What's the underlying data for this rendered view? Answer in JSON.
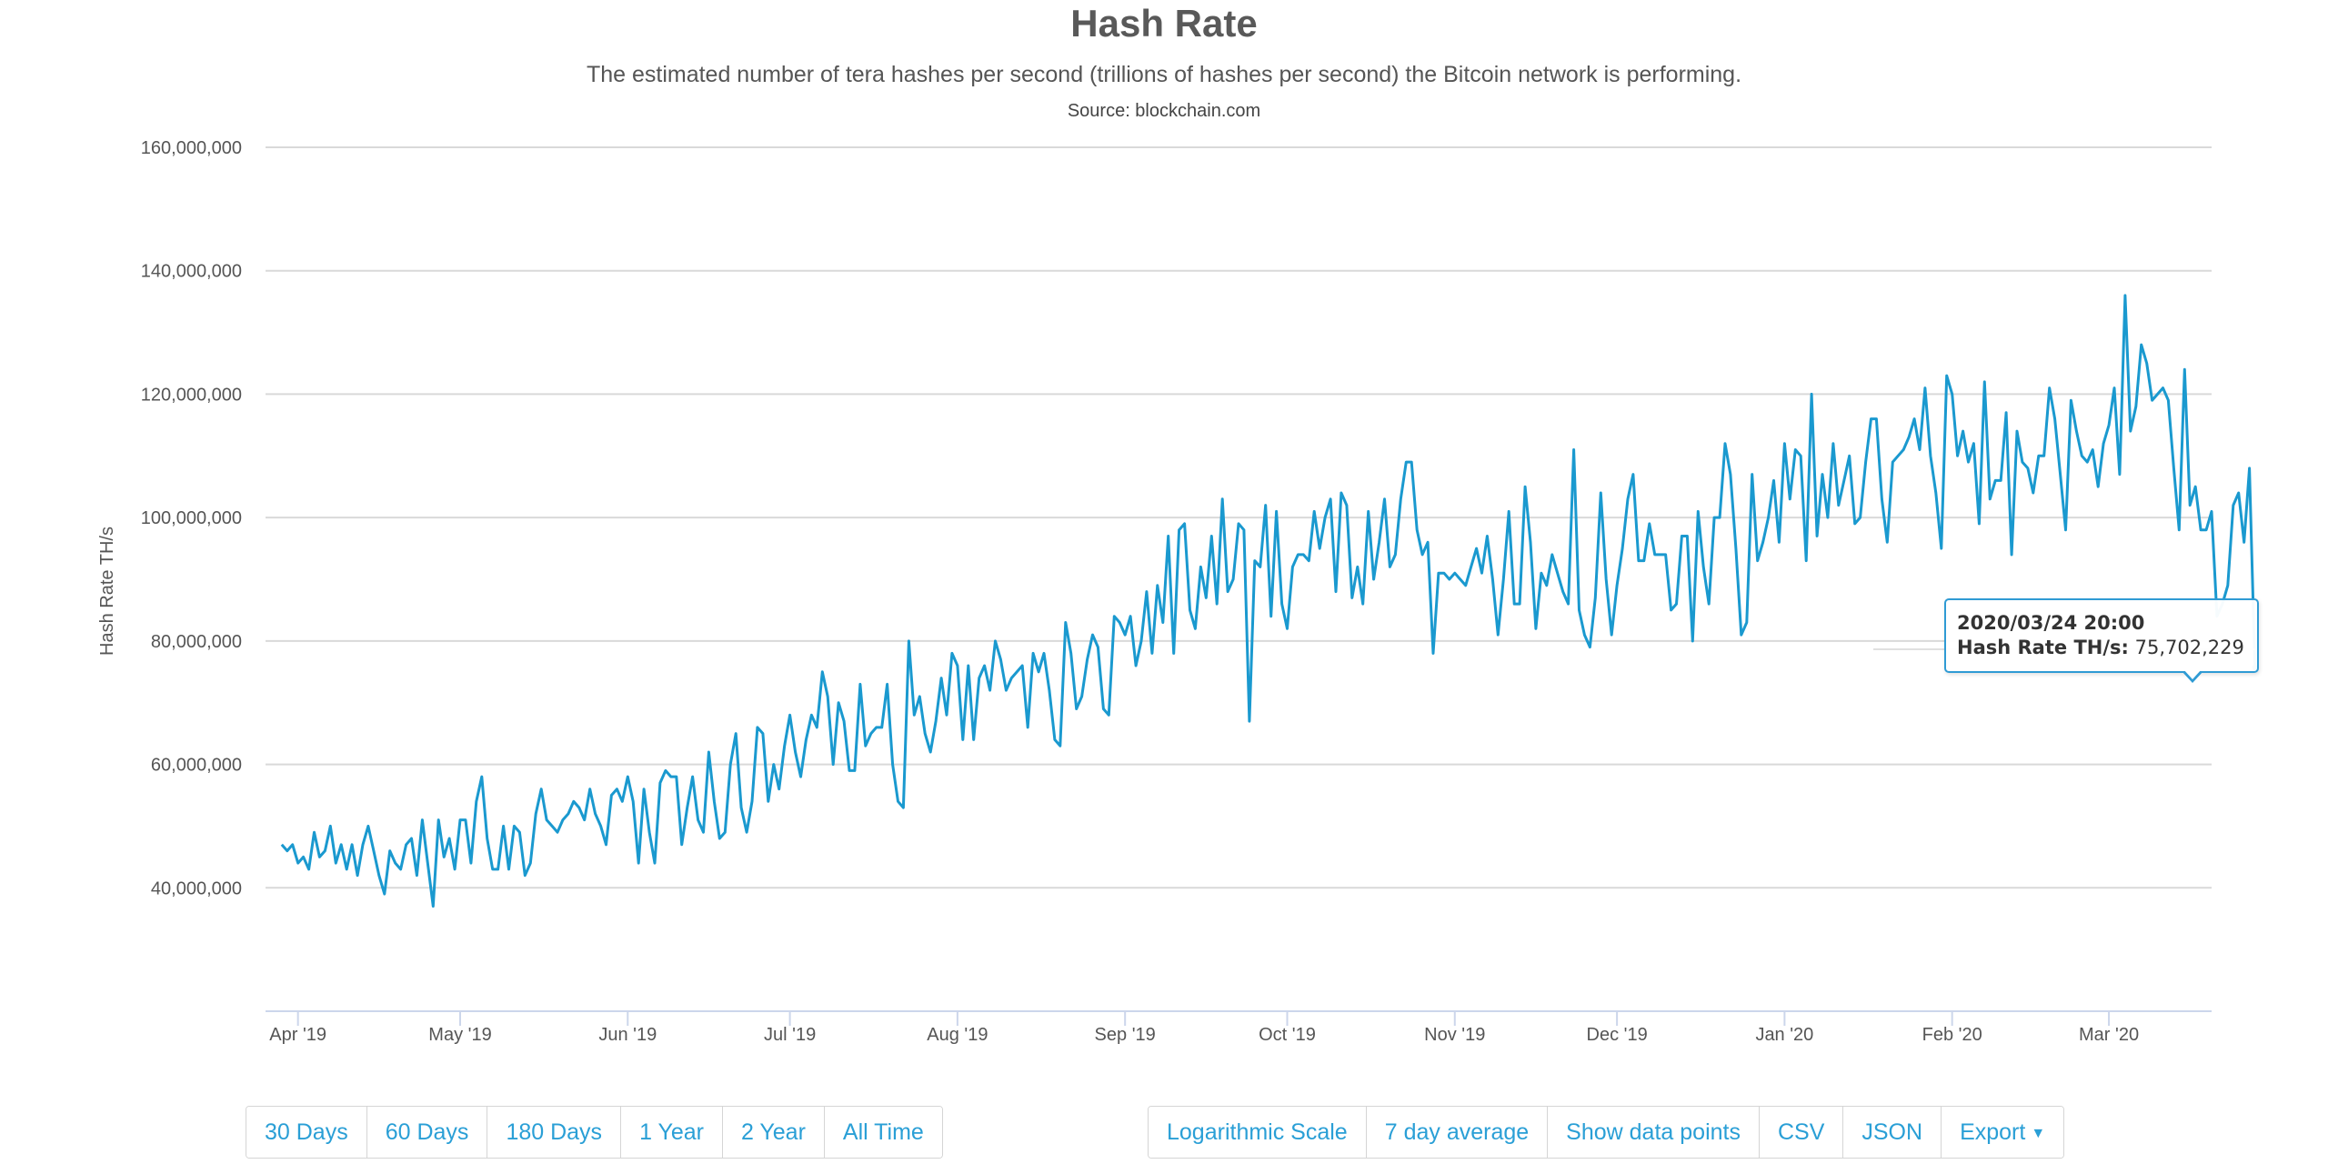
{
  "chart_data": {
    "type": "line",
    "title": "Hash Rate",
    "subtitle": "The estimated number of tera hashes per second (trillions of hashes per second) the Bitcoin network is performing.",
    "source": "Source: blockchain.com",
    "ylabel": "Hash Rate TH/s",
    "xlabel": "",
    "ylim": [
      20000000,
      160000000
    ],
    "y_ticks": [
      {
        "value": 40000000,
        "label": "40,000,000"
      },
      {
        "value": 60000000,
        "label": "60,000,000"
      },
      {
        "value": 80000000,
        "label": "80,000,000"
      },
      {
        "value": 100000000,
        "label": "100,000,000"
      },
      {
        "value": 120000000,
        "label": "120,000,000"
      },
      {
        "value": 140000000,
        "label": "140,000,000"
      },
      {
        "value": 160000000,
        "label": "160,000,000"
      }
    ],
    "x_range_days": [
      0,
      360
    ],
    "x_ticks": [
      {
        "day": 6,
        "label": "Apr '19"
      },
      {
        "day": 36,
        "label": "May '19"
      },
      {
        "day": 67,
        "label": "Jun '19"
      },
      {
        "day": 97,
        "label": "Jul '19"
      },
      {
        "day": 128,
        "label": "Aug '19"
      },
      {
        "day": 159,
        "label": "Sep '19"
      },
      {
        "day": 189,
        "label": "Oct '19"
      },
      {
        "day": 220,
        "label": "Nov '19"
      },
      {
        "day": 250,
        "label": "Dec '19"
      },
      {
        "day": 281,
        "label": "Jan '20"
      },
      {
        "day": 312,
        "label": "Feb '20"
      },
      {
        "day": 341,
        "label": "Mar '20"
      }
    ],
    "series": [
      {
        "name": "Hash Rate TH/s",
        "color": "#1a99cf",
        "x_start_day": 3,
        "x_step_days": 1,
        "values": [
          47000000,
          46000000,
          47000000,
          44000000,
          45000000,
          43000000,
          49000000,
          45000000,
          46000000,
          50000000,
          44000000,
          47000000,
          43000000,
          47000000,
          42000000,
          47000000,
          50000000,
          46000000,
          42000000,
          39000000,
          46000000,
          44000000,
          43000000,
          47000000,
          48000000,
          42000000,
          51000000,
          44000000,
          37000000,
          51000000,
          45000000,
          48000000,
          43000000,
          51000000,
          51000000,
          44000000,
          54000000,
          58000000,
          48000000,
          43000000,
          43000000,
          50000000,
          43000000,
          50000000,
          49000000,
          42000000,
          44000000,
          52000000,
          56000000,
          51000000,
          50000000,
          49000000,
          51000000,
          52000000,
          54000000,
          53000000,
          51000000,
          56000000,
          52000000,
          50000000,
          47000000,
          55000000,
          56000000,
          54000000,
          58000000,
          54000000,
          44000000,
          56000000,
          49000000,
          44000000,
          57000000,
          59000000,
          58000000,
          58000000,
          47000000,
          53000000,
          58000000,
          51000000,
          49000000,
          62000000,
          54000000,
          48000000,
          49000000,
          60000000,
          65000000,
          53000000,
          49000000,
          54000000,
          66000000,
          65000000,
          54000000,
          60000000,
          56000000,
          63000000,
          68000000,
          62000000,
          58000000,
          64000000,
          68000000,
          66000000,
          75000000,
          71000000,
          60000000,
          70000000,
          67000000,
          59000000,
          59000000,
          73000000,
          63000000,
          65000000,
          66000000,
          66000000,
          73000000,
          60000000,
          54000000,
          53000000,
          80000000,
          68000000,
          71000000,
          65000000,
          62000000,
          67000000,
          74000000,
          68000000,
          78000000,
          76000000,
          64000000,
          76000000,
          64000000,
          74000000,
          76000000,
          72000000,
          80000000,
          77000000,
          72000000,
          74000000,
          75000000,
          76000000,
          66000000,
          78000000,
          75000000,
          78000000,
          72000000,
          64000000,
          63000000,
          83000000,
          78000000,
          69000000,
          71000000,
          77000000,
          81000000,
          79000000,
          69000000,
          68000000,
          84000000,
          83000000,
          81000000,
          84000000,
          76000000,
          80000000,
          88000000,
          78000000,
          89000000,
          83000000,
          97000000,
          78000000,
          98000000,
          99000000,
          85000000,
          82000000,
          92000000,
          87000000,
          97000000,
          86000000,
          103000000,
          88000000,
          90000000,
          99000000,
          98000000,
          67000000,
          93000000,
          92000000,
          102000000,
          84000000,
          101000000,
          86000000,
          82000000,
          92000000,
          94000000,
          94000000,
          93000000,
          101000000,
          95000000,
          100000000,
          103000000,
          88000000,
          104000000,
          102000000,
          87000000,
          92000000,
          86000000,
          101000000,
          90000000,
          96000000,
          103000000,
          92000000,
          94000000,
          103000000,
          109000000,
          109000000,
          98000000,
          94000000,
          96000000,
          78000000,
          91000000,
          91000000,
          90000000,
          91000000,
          90000000,
          89000000,
          92000000,
          95000000,
          91000000,
          97000000,
          90000000,
          81000000,
          90000000,
          101000000,
          86000000,
          86000000,
          105000000,
          96000000,
          82000000,
          91000000,
          89000000,
          94000000,
          91000000,
          88000000,
          86000000,
          111000000,
          85000000,
          81000000,
          79000000,
          87000000,
          104000000,
          90000000,
          81000000,
          89000000,
          95000000,
          103000000,
          107000000,
          93000000,
          93000000,
          99000000,
          94000000,
          94000000,
          94000000,
          85000000,
          86000000,
          97000000,
          97000000,
          80000000,
          101000000,
          92000000,
          86000000,
          100000000,
          100000000,
          112000000,
          107000000,
          95000000,
          81000000,
          83000000,
          107000000,
          93000000,
          96000000,
          100000000,
          106000000,
          96000000,
          112000000,
          103000000,
          111000000,
          110000000,
          93000000,
          120000000,
          97000000,
          107000000,
          100000000,
          112000000,
          102000000,
          106000000,
          110000000,
          99000000,
          100000000,
          109000000,
          116000000,
          116000000,
          103000000,
          96000000,
          109000000,
          110000000,
          111000000,
          113000000,
          116000000,
          111000000,
          121000000,
          110000000,
          104000000,
          95000000,
          123000000,
          120000000,
          110000000,
          114000000,
          109000000,
          112000000,
          99000000,
          122000000,
          103000000,
          106000000,
          106000000,
          117000000,
          94000000,
          114000000,
          109000000,
          108000000,
          104000000,
          110000000,
          110000000,
          121000000,
          116000000,
          107000000,
          98000000,
          119000000,
          114000000,
          110000000,
          109000000,
          111000000,
          105000000,
          112000000,
          115000000,
          121000000,
          107000000,
          136000000,
          114000000,
          118000000,
          128000000,
          125000000,
          119000000,
          120000000,
          121000000,
          119000000,
          108000000,
          98000000,
          124000000,
          102000000,
          105000000,
          98000000,
          98000000,
          101000000,
          84000000,
          86000000,
          89000000,
          102000000,
          104000000,
          96000000,
          108000000,
          75702229
        ]
      }
    ],
    "tooltip": {
      "date": "2020/03/24 20:00",
      "series_label": "Hash Rate TH/s",
      "value": "75,702,229"
    }
  },
  "range_buttons": [
    "30 Days",
    "60 Days",
    "180 Days",
    "1 Year",
    "2 Year",
    "All Time"
  ],
  "option_buttons": [
    "Logarithmic Scale",
    "7 day average",
    "Show data points",
    "CSV",
    "JSON"
  ],
  "export_label": "Export",
  "colors": {
    "line": "#1a99cf",
    "accent": "#2a9fd6",
    "grid": "#d9d9d9",
    "axis": "#ccd6eb"
  }
}
